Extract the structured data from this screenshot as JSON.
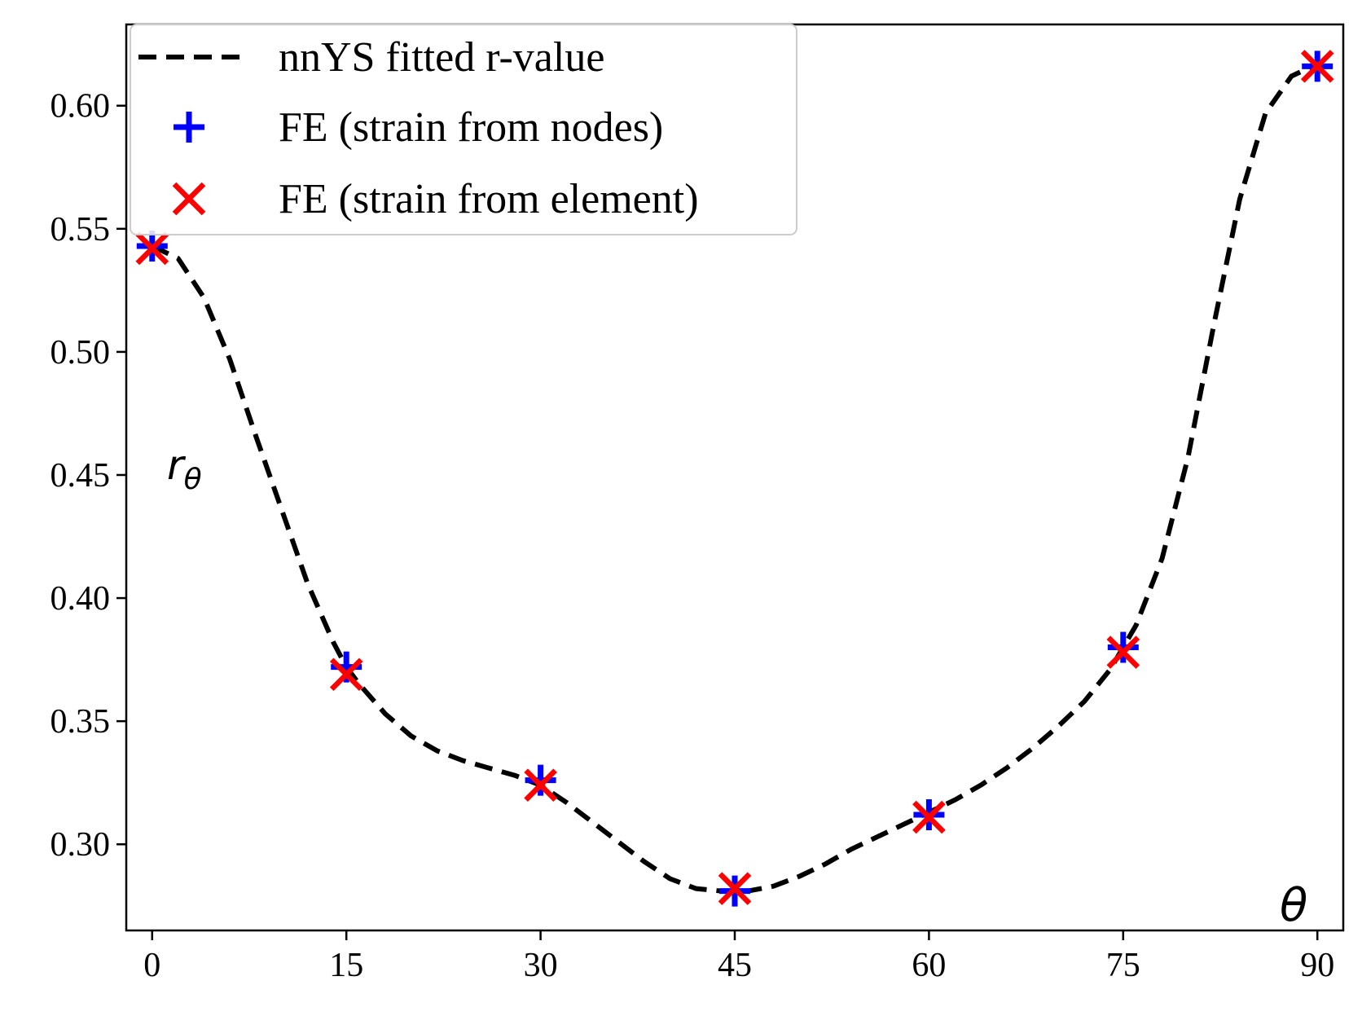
{
  "chart_data": {
    "type": "line",
    "x_ticks": [
      0,
      15,
      30,
      45,
      60,
      75,
      90
    ],
    "y_ticks": [
      0.3,
      0.35,
      0.4,
      0.45,
      0.5,
      0.55,
      0.6
    ],
    "x_tick_labels": [
      "0",
      "15",
      "30",
      "45",
      "60",
      "75",
      "90"
    ],
    "y_tick_labels": [
      "0.30",
      "0.35",
      "0.40",
      "0.45",
      "0.50",
      "0.55",
      "0.60"
    ],
    "xlim": [
      -2,
      92
    ],
    "ylim": [
      0.265,
      0.633
    ],
    "grid": false,
    "legend_position": "top-left",
    "ylabel_main": "r",
    "ylabel_sub": "θ",
    "xlabel": "θ",
    "series": [
      {
        "name": "nnYS fitted r-value",
        "style": "dashed-line",
        "color": "#000000",
        "x": [
          0,
          2,
          4,
          6,
          8,
          10,
          12,
          14,
          15,
          16,
          18,
          20,
          22,
          24,
          26,
          28,
          30,
          32,
          34,
          36,
          38,
          40,
          42,
          44,
          45,
          46,
          48,
          50,
          52,
          54,
          56,
          58,
          60,
          62,
          64,
          66,
          68,
          70,
          72,
          74,
          75,
          76,
          78,
          80,
          82,
          84,
          86,
          88,
          90
        ],
        "y": [
          0.543,
          0.538,
          0.522,
          0.497,
          0.466,
          0.436,
          0.406,
          0.382,
          0.372,
          0.365,
          0.353,
          0.344,
          0.338,
          0.334,
          0.331,
          0.328,
          0.324,
          0.317,
          0.309,
          0.301,
          0.293,
          0.286,
          0.282,
          0.281,
          0.281,
          0.281,
          0.283,
          0.287,
          0.292,
          0.298,
          0.303,
          0.308,
          0.313,
          0.318,
          0.324,
          0.331,
          0.339,
          0.348,
          0.358,
          0.371,
          0.38,
          0.389,
          0.416,
          0.457,
          0.511,
          0.562,
          0.597,
          0.612,
          0.617
        ]
      },
      {
        "name": "FE (strain from nodes)",
        "style": "plus-marker",
        "color": "#0000ff",
        "x": [
          0,
          15,
          30,
          45,
          60,
          75,
          90
        ],
        "y": [
          0.543,
          0.372,
          0.326,
          0.281,
          0.312,
          0.38,
          0.616
        ]
      },
      {
        "name": "FE (strain from element)",
        "style": "x-marker",
        "color": "#ff0000",
        "x": [
          0,
          15,
          30,
          45,
          60,
          75,
          90
        ],
        "y": [
          0.542,
          0.369,
          0.324,
          0.282,
          0.311,
          0.378,
          0.616
        ]
      }
    ]
  },
  "colors": {
    "fit_line": "#000000",
    "nodes_marker": "#0000ff",
    "element_marker": "#ff0000",
    "axes": "#000000",
    "background": "#ffffff"
  }
}
